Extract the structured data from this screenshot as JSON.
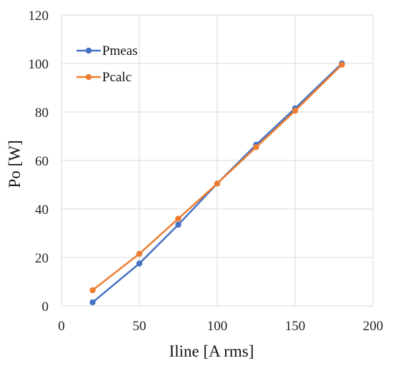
{
  "chart_data": {
    "type": "line",
    "title": "",
    "xlabel": "Iline [A rms]",
    "ylabel": "Po [W]",
    "xlim": [
      0,
      200
    ],
    "ylim": [
      0,
      120
    ],
    "xticks": [
      0,
      50,
      100,
      150,
      200
    ],
    "yticks": [
      0,
      20,
      40,
      60,
      80,
      100,
      120
    ],
    "grid": true,
    "legend_position": "top-left",
    "series": [
      {
        "name": "Pmeas",
        "color": "#4472c4",
        "x": [
          20,
          50,
          75,
          100,
          125,
          150,
          180
        ],
        "y": [
          1.5,
          17.5,
          33.5,
          50.5,
          66.5,
          81.5,
          100
        ]
      },
      {
        "name": "Pcalc",
        "color": "#ed7d31",
        "x": [
          20,
          50,
          75,
          100,
          125,
          150,
          180
        ],
        "y": [
          6.5,
          21.5,
          36,
          50.5,
          65.5,
          80.5,
          99.5
        ]
      }
    ]
  }
}
